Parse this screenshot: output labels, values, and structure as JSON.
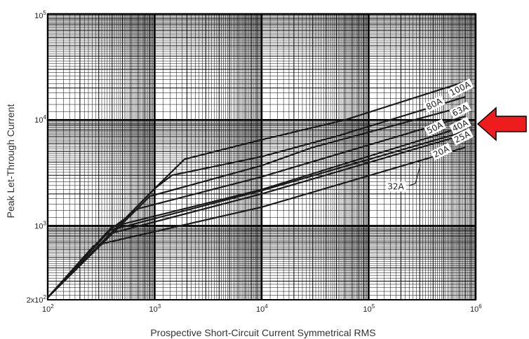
{
  "chart_data": {
    "type": "line",
    "title": "",
    "xlabel": "Prospective Short-Circuit Current Symmetrical RMS",
    "ylabel": "Peak Let-Through Current",
    "x_scale": "log",
    "y_scale": "log",
    "xlim": [
      100,
      1000000
    ],
    "ylim": [
      200,
      100000
    ],
    "x_ticks": [
      {
        "base": "10",
        "exp": "2",
        "value": 100
      },
      {
        "base": "10",
        "exp": "3",
        "value": 1000
      },
      {
        "base": "10",
        "exp": "4",
        "value": 10000
      },
      {
        "base": "10",
        "exp": "5",
        "value": 100000
      },
      {
        "base": "10",
        "exp": "6",
        "value": 1000000
      }
    ],
    "y_ticks": [
      {
        "base": "2x10",
        "exp": "2",
        "value": 200
      },
      {
        "base": "10",
        "exp": "3",
        "value": 1000
      },
      {
        "base": "10",
        "exp": "4",
        "value": 10000
      },
      {
        "base": "10",
        "exp": "5",
        "value": 100000
      }
    ],
    "grid": true,
    "series": [
      {
        "name": "100A",
        "x": [
          100,
          1000,
          1900,
          10000,
          60000,
          800000
        ],
        "y": [
          210,
          2250,
          4250,
          6500,
          10000,
          23000
        ]
      },
      {
        "name": "80A",
        "x": [
          100,
          1000,
          1450,
          10000,
          50000,
          800000
        ],
        "y": [
          210,
          2250,
          3000,
          4500,
          7000,
          16500
        ]
      },
      {
        "name": "63A",
        "x": [
          100,
          500,
          900,
          10000,
          30000,
          800000
        ],
        "y": [
          210,
          1050,
          1900,
          3700,
          5500,
          13500
        ]
      },
      {
        "name": "50A",
        "x": [
          100,
          400,
          700,
          10000,
          800000
        ],
        "y": [
          210,
          950,
          1450,
          2900,
          10800
        ]
      },
      {
        "name": "40A",
        "x": [
          100,
          400,
          10000,
          800000
        ],
        "y": [
          210,
          980,
          2200,
          8700
        ]
      },
      {
        "name": "32A",
        "x": [
          100,
          370,
          10000,
          800000
        ],
        "y": [
          210,
          900,
          2150,
          7800
        ]
      },
      {
        "name": "25A",
        "x": [
          100,
          340,
          10000,
          800000
        ],
        "y": [
          210,
          820,
          2000,
          7300
        ]
      },
      {
        "name": "20A",
        "x": [
          100,
          270,
          10000,
          800000
        ],
        "y": [
          210,
          650,
          1500,
          5500
        ]
      }
    ],
    "curve_labels": [
      {
        "text": "100A"
      },
      {
        "text": "80A"
      },
      {
        "text": "63A"
      },
      {
        "text": "50A"
      },
      {
        "text": "40A"
      },
      {
        "text": "25A"
      },
      {
        "text": "20A"
      },
      {
        "text": "32A"
      }
    ],
    "highlight_arrow": {
      "color": "#ee1c1c",
      "points_to": "40A"
    },
    "colors": {
      "grid": "#000000",
      "curve": "#1a1a1a",
      "arrow_fill": "#ee1c1c"
    }
  }
}
